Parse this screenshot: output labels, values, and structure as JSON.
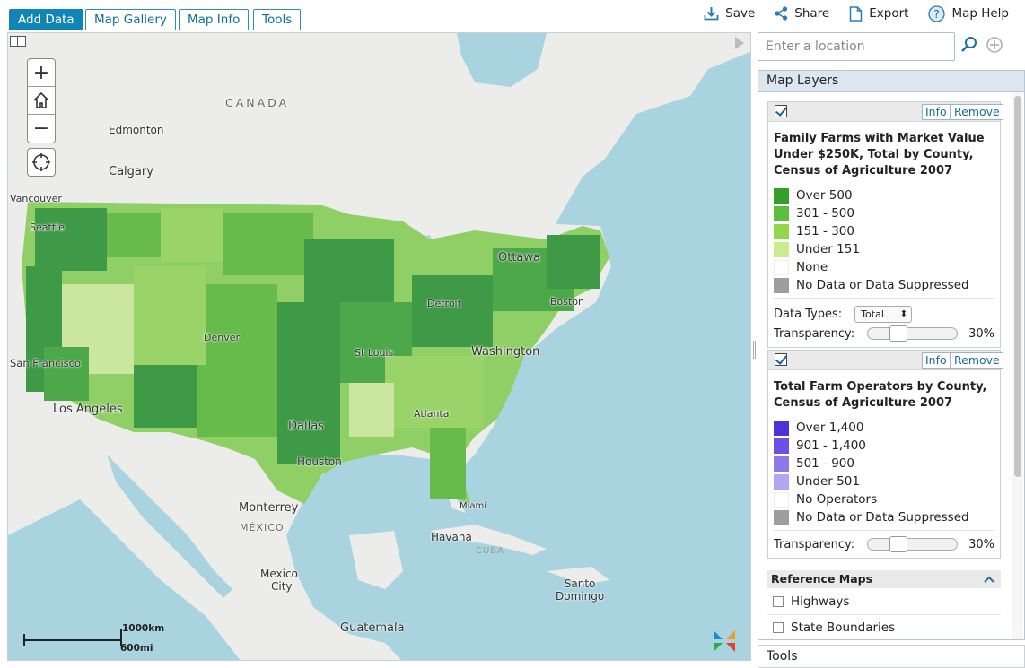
{
  "tabs": [
    {
      "label": "Add Data",
      "active": true
    },
    {
      "label": "Map Gallery",
      "active": false
    },
    {
      "label": "Map Info",
      "active": false
    },
    {
      "label": "Tools",
      "active": false
    }
  ],
  "actions": {
    "save": "Save",
    "share": "Share",
    "export": "Export",
    "help": "Map Help"
  },
  "search": {
    "placeholder": "Enter a location"
  },
  "map": {
    "labels": {
      "canada": "CANADA",
      "edmonton": "Edmonton",
      "calgary": "Calgary",
      "vancouver": "Vancouver",
      "seattle": "Seattle",
      "ottawa": "Ottawa",
      "boston": "Boston",
      "detroit": "Detroit",
      "denver": "Denver",
      "st_louis": "St Louis",
      "washington": "Washington",
      "san_francisco": "San Francisco",
      "los_angeles": "Los Angeles",
      "dallas": "Dallas",
      "atlanta": "Atlanta",
      "houston": "Houston",
      "miami": "Miami",
      "monterrey": "Monterrey",
      "mexico": "MÉXICO",
      "havana": "Havana",
      "cuba": "CUBA",
      "mexico_city_1": "Mexico",
      "mexico_city_2": "City",
      "santo_1": "Santo",
      "santo_2": "Domingo",
      "guatemala": "Guatemala"
    },
    "scale": {
      "km": "1000km",
      "mi": "600mi"
    },
    "colors": {
      "water": "#a9d3de",
      "land": "#ececea",
      "farm_dark": "#3e9a47",
      "farm_mid": "#66bb4a",
      "farm_light": "#9bd36b",
      "farm_pale": "#cbe79f"
    }
  },
  "panel": {
    "layers_title": "Map Layers",
    "layer1": {
      "info": "Info",
      "remove": "Remove",
      "title": "Family Farms with Market Value Under $250K, Total by County, Census of Agriculture 2007",
      "legend": [
        {
          "label": "Over 500",
          "color": "#33a02c"
        },
        {
          "label": "301 - 500",
          "color": "#5cbf3c"
        },
        {
          "label": "151 - 300",
          "color": "#91d64b"
        },
        {
          "label": "Under 151",
          "color": "#c9ec8e"
        },
        {
          "label": "None",
          "color": "#ffffff"
        },
        {
          "label": "No Data or Data Suppressed",
          "color": "#9e9e9e"
        }
      ],
      "data_types_label": "Data Types:",
      "data_types_value": "Total",
      "transparency_label": "Transparency:",
      "transparency_value": "30%",
      "transparency_level": 0.3
    },
    "layer2": {
      "info": "Info",
      "remove": "Remove",
      "title": "Total Farm Operators by County, Census of Agriculture 2007",
      "legend": [
        {
          "label": "Over 1,400",
          "color": "#4a33d8"
        },
        {
          "label": "901 - 1,400",
          "color": "#6b52e6"
        },
        {
          "label": "501 - 900",
          "color": "#8c79ec"
        },
        {
          "label": "Under 501",
          "color": "#b3a6f2"
        },
        {
          "label": "No Operators",
          "color": "#ffffff"
        },
        {
          "label": "No Data or Data Suppressed",
          "color": "#9e9e9e"
        }
      ],
      "transparency_label": "Transparency:",
      "transparency_value": "30%",
      "transparency_level": 0.3
    },
    "reference": {
      "title": "Reference Maps",
      "items": [
        "Highways",
        "State Boundaries"
      ]
    },
    "tools_title": "Tools"
  }
}
